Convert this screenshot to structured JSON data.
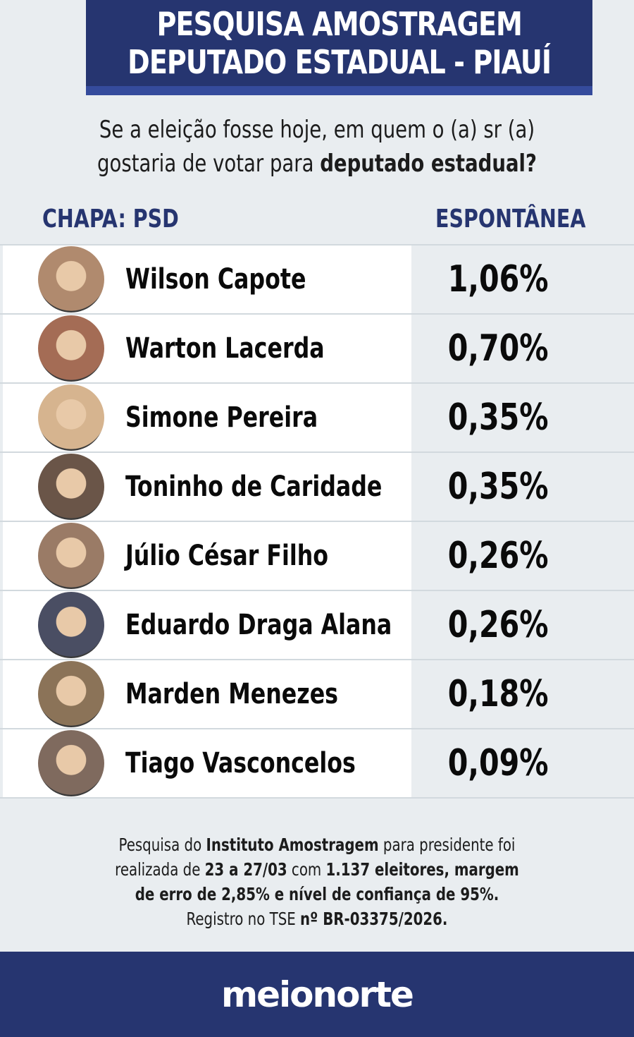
{
  "header": {
    "line1": "PESQUISA AMOSTRAGEM",
    "line2": "DEPUTADO ESTADUAL - PIAUÍ"
  },
  "question": {
    "part1": "Se a eleição fosse hoje, em quem o (a) sr (a)",
    "part2": "gostaria de votar para ",
    "part2_bold": "deputado estadual?"
  },
  "columns": {
    "left": "CHAPA: PSD",
    "right": "ESPONTÂNEA"
  },
  "candidates": [
    {
      "name": "Wilson Capote",
      "value": "1,06%",
      "avatar_color": "#b08a6e"
    },
    {
      "name": "Warton Lacerda",
      "value": "0,70%",
      "avatar_color": "#a46c55"
    },
    {
      "name": "Simone Pereira",
      "value": "0,35%",
      "avatar_color": "#d6b48f"
    },
    {
      "name": "Toninho de Caridade",
      "value": "0,35%",
      "avatar_color": "#6a5548"
    },
    {
      "name": "Júlio César Filho",
      "value": "0,26%",
      "avatar_color": "#9a7b66"
    },
    {
      "name": "Eduardo Draga Alana",
      "value": "0,26%",
      "avatar_color": "#4a4e63"
    },
    {
      "name": "Marden Menezes",
      "value": "0,18%",
      "avatar_color": "#8b7358"
    },
    {
      "name": "Tiago Vasconcelos",
      "value": "0,09%",
      "avatar_color": "#7f6a5e"
    }
  ],
  "note": {
    "l1a": "Pesquisa do ",
    "l1b": "Instituto Amostragem",
    "l1c": " para presidente foi",
    "l2a": "realizada de ",
    "l2b": "23 a 27/03",
    "l2c": " com ",
    "l2d": "1.137 eleitores, margem",
    "l3": "de erro de 2,85% e nível de confiança de 95%.",
    "l4a": "Registro no TSE ",
    "l4b": "nº BR-03375/2026."
  },
  "footer": {
    "logo": "meionorte"
  },
  "chart_data": {
    "type": "table",
    "title": "PESQUISA AMOSTRAGEM DEPUTADO ESTADUAL - PIAUÍ",
    "subtitle": "Se a eleição fosse hoje, em quem o (a) sr (a) gostaria de votar para deputado estadual?",
    "group": "CHAPA: PSD",
    "metric": "ESPONTÂNEA",
    "categories": [
      "Wilson Capote",
      "Warton Lacerda",
      "Simone Pereira",
      "Toninho de Caridade",
      "Júlio César Filho",
      "Eduardo Draga Alana",
      "Marden Menezes",
      "Tiago Vasconcelos"
    ],
    "values": [
      1.06,
      0.7,
      0.35,
      0.35,
      0.26,
      0.26,
      0.18,
      0.09
    ],
    "unit": "%"
  }
}
